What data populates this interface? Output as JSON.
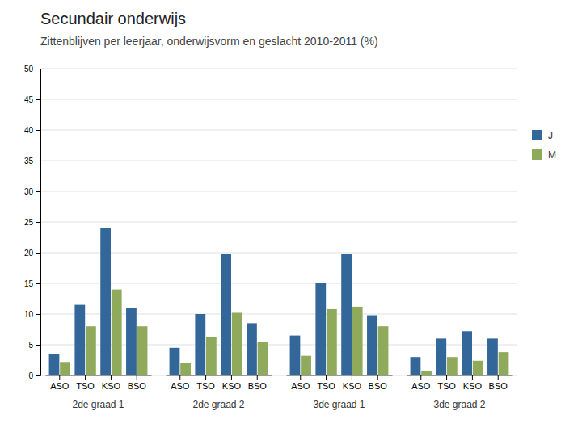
{
  "chart_data": {
    "type": "bar",
    "title": "Secundair onderwijs",
    "subtitle": "Zittenblijven per leerjaar, onderwijsvorm en geslacht 2010-2011 (%)",
    "groups": [
      {
        "name": "2de graad 1",
        "categories": [
          "ASO",
          "TSO",
          "KSO",
          "BSO"
        ]
      },
      {
        "name": "2de graad 2",
        "categories": [
          "ASO",
          "TSO",
          "KSO",
          "BSO"
        ]
      },
      {
        "name": "3de graad 1",
        "categories": [
          "ASO",
          "TSO",
          "KSO",
          "BSO"
        ]
      },
      {
        "name": "3de graad 2",
        "categories": [
          "ASO",
          "TSO",
          "KSO",
          "BSO"
        ]
      }
    ],
    "series": [
      {
        "name": "J",
        "color": "#336699",
        "values": [
          3.5,
          11.5,
          24.0,
          11.0,
          4.5,
          10.0,
          19.8,
          8.5,
          6.5,
          15.0,
          19.8,
          9.8,
          3.0,
          6.0,
          7.2,
          6.0
        ]
      },
      {
        "name": "M",
        "color": "#8faa5b",
        "values": [
          2.2,
          8.0,
          14.0,
          8.0,
          2.0,
          6.2,
          10.2,
          5.5,
          3.2,
          10.8,
          11.2,
          8.0,
          0.8,
          3.0,
          2.4,
          3.8
        ]
      }
    ],
    "ylim": [
      0,
      50
    ],
    "yticks": [
      0,
      5,
      10,
      15,
      20,
      25,
      30,
      35,
      40,
      45,
      50
    ],
    "grid": true,
    "legend": "right"
  }
}
